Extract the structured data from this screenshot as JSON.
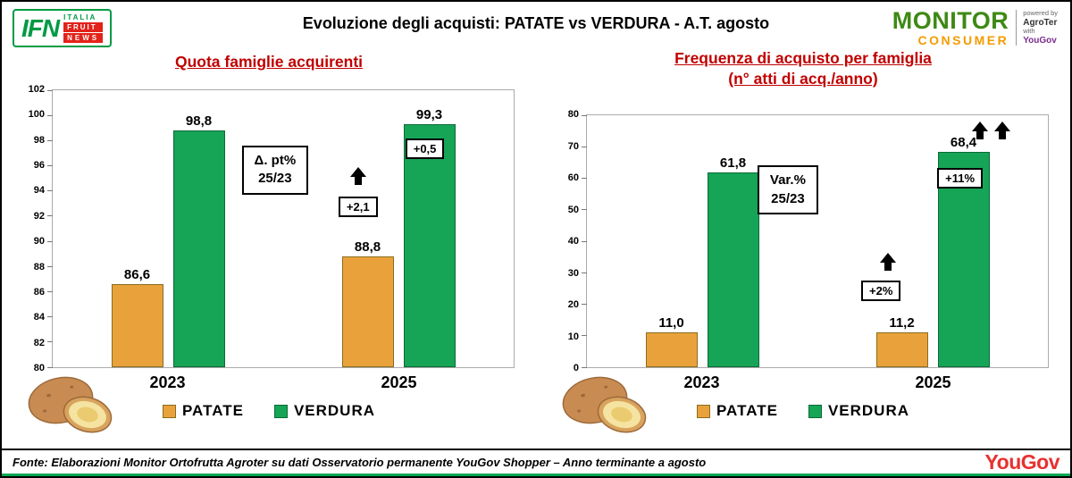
{
  "header": {
    "title": "Evoluzione degli acquisti: PATATE vs VERDURA  - A.T. agosto",
    "ifn": {
      "abbr": "IFN",
      "word1": "ITALIA",
      "word2": "FRUIT",
      "word3": "NEWS"
    },
    "monitor": {
      "name": "MONITOR",
      "sub": "CONSUMER",
      "powered_by": "powered by",
      "agroter": "AgroTer",
      "with": "with",
      "yougov": "YouGov"
    }
  },
  "chart_data": [
    {
      "type": "bar",
      "title": "Quota famiglie acquirenti",
      "categories": [
        "2023",
        "2025"
      ],
      "series": [
        {
          "name": "PATATE",
          "values": [
            86.6,
            88.8
          ],
          "labels": [
            "86,6",
            "88,8"
          ],
          "color": "#E9A23B",
          "border": "#8A6D1D"
        },
        {
          "name": "VERDURA",
          "values": [
            98.8,
            99.3
          ],
          "labels": [
            "98,8",
            "99,3"
          ],
          "color": "#16A457",
          "border": "#0A6B36"
        }
      ],
      "ylim": [
        80,
        102
      ],
      "ytick_step": 2,
      "grid": false,
      "legend_position": "bottom",
      "annotations": {
        "box_line1": "Δ. pt%",
        "box_line2": "25/23",
        "patate_change": "+2,1",
        "verdura_change": "+0,5"
      }
    },
    {
      "type": "bar",
      "title": "Frequenza di acquisto per famiglia",
      "subtitle": "(n° atti di acq./anno)",
      "categories": [
        "2023",
        "2025"
      ],
      "series": [
        {
          "name": "PATATE",
          "values": [
            11.0,
            11.2
          ],
          "labels": [
            "11,0",
            "11,2"
          ],
          "color": "#E9A23B",
          "border": "#8A6D1D"
        },
        {
          "name": "VERDURA",
          "values": [
            61.8,
            68.4
          ],
          "labels": [
            "61,8",
            "68,4"
          ],
          "color": "#16A457",
          "border": "#0A6B36"
        }
      ],
      "ylim": [
        0,
        80
      ],
      "ytick_step": 10,
      "grid": false,
      "legend_position": "bottom",
      "annotations": {
        "box_line1": "Var.%",
        "box_line2": "25/23",
        "patate_change": "+2%",
        "verdura_change": "+11%"
      }
    }
  ],
  "footer": {
    "source": "Fonte: Elaborazioni Monitor Ortofrutta Agroter su dati Osservatorio permanente YouGov Shopper  – Anno terminante a agosto",
    "yougov_logo": "YouGov"
  },
  "colors": {
    "chart_title_red": "#C00000",
    "patate": "#E9A23B",
    "verdura": "#16A457",
    "ifn_green": "#009A44",
    "ifn_red": "#E2231A",
    "monitor_green": "#3E8914",
    "monitor_orange": "#F59B00",
    "yougov_red": "#E8312F"
  }
}
